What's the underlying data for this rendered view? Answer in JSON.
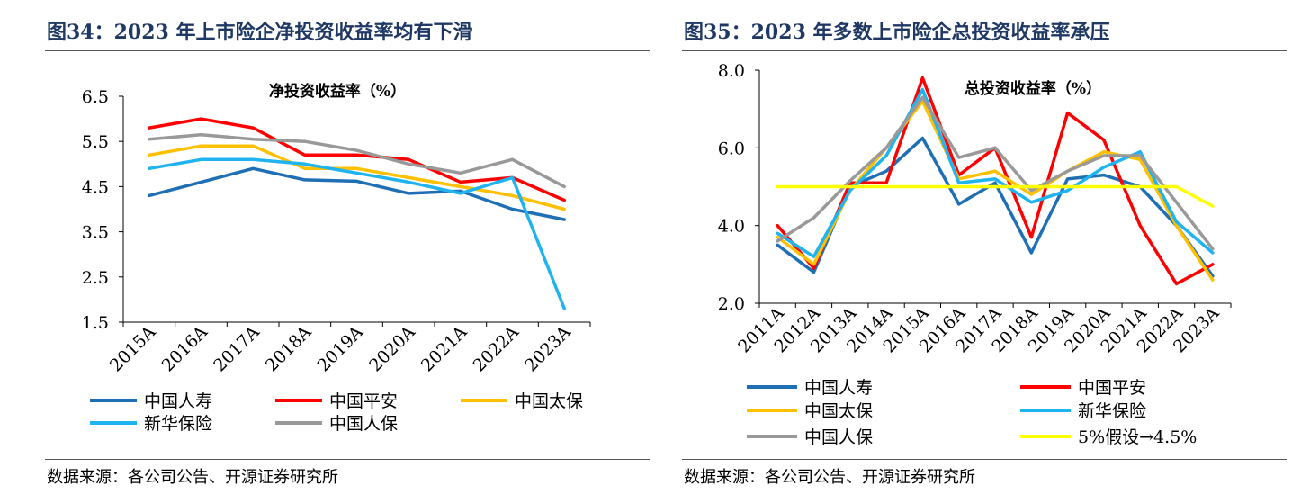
{
  "left": {
    "figure_title": "图34：2023 年上市险企净投资收益率均有下滑",
    "source": "数据来源：各公司公告、开源证券研究所"
  },
  "right": {
    "figure_title": "图35：2023 年多数上市险企总投资收益率承压",
    "source": "数据来源：各公司公告、开源证券研究所"
  },
  "chart_data": [
    {
      "type": "line",
      "title": "净投资收益率（%）",
      "xlabel": "",
      "ylabel": "",
      "categories": [
        "2015A",
        "2016A",
        "2017A",
        "2018A",
        "2019A",
        "2020A",
        "2021A",
        "2022A",
        "2023A"
      ],
      "ylim": [
        1.5,
        6.5
      ],
      "yticks": [
        "1.5",
        "2.5",
        "3.5",
        "4.5",
        "5.5",
        "6.5"
      ],
      "grid": false,
      "legend_position": "bottom",
      "series": [
        {
          "name": "中国人寿",
          "color": "#1f6fb5",
          "values": [
            4.3,
            4.6,
            4.9,
            4.65,
            4.62,
            4.35,
            4.4,
            4.0,
            3.77
          ]
        },
        {
          "name": "中国平安",
          "color": "#ff0000",
          "values": [
            5.8,
            6.0,
            5.8,
            5.2,
            5.2,
            5.1,
            4.6,
            4.7,
            4.2
          ]
        },
        {
          "name": "中国太保",
          "color": "#ffc000",
          "values": [
            5.2,
            5.4,
            5.4,
            4.9,
            4.9,
            4.7,
            4.5,
            4.3,
            4.0
          ]
        },
        {
          "name": "新华保险",
          "color": "#1fb4f0",
          "values": [
            4.9,
            5.1,
            5.1,
            5.0,
            4.8,
            4.6,
            4.35,
            4.7,
            1.8
          ]
        },
        {
          "name": "中国人保",
          "color": "#999999",
          "values": [
            5.55,
            5.65,
            5.55,
            5.5,
            5.3,
            5.0,
            4.8,
            5.1,
            4.5
          ]
        }
      ]
    },
    {
      "type": "line",
      "title": "总投资收益率（%）",
      "xlabel": "",
      "ylabel": "",
      "categories": [
        "2011A",
        "2012A",
        "2013A",
        "2014A",
        "2015A",
        "2016A",
        "2017A",
        "2018A",
        "2019A",
        "2020A",
        "2021A",
        "2022A",
        "2023A"
      ],
      "ylim": [
        2.0,
        8.0
      ],
      "yticks": [
        "2.0",
        "4.0",
        "6.0",
        "8.0"
      ],
      "grid": false,
      "legend_position": "bottom",
      "series": [
        {
          "name": "中国人寿",
          "color": "#1f6fb5",
          "values": [
            3.5,
            2.8,
            5.0,
            5.4,
            6.25,
            4.55,
            5.1,
            3.3,
            5.2,
            5.3,
            5.0,
            4.0,
            2.7
          ]
        },
        {
          "name": "中国平安",
          "color": "#ff0000",
          "values": [
            4.0,
            2.9,
            5.1,
            5.1,
            7.8,
            5.3,
            6.0,
            3.7,
            6.9,
            6.2,
            4.0,
            2.5,
            3.0
          ]
        },
        {
          "name": "中国太保",
          "color": "#ffc000",
          "values": [
            3.7,
            3.0,
            4.9,
            6.0,
            7.2,
            5.2,
            5.4,
            4.8,
            5.4,
            5.9,
            5.7,
            4.0,
            2.6
          ]
        },
        {
          "name": "新华保险",
          "color": "#1fb4f0",
          "values": [
            3.8,
            3.2,
            4.9,
            5.8,
            7.5,
            5.1,
            5.2,
            4.6,
            4.9,
            5.5,
            5.9,
            4.1,
            3.3
          ]
        },
        {
          "name": "中国人保",
          "color": "#999999",
          "values": [
            3.6,
            4.2,
            5.15,
            6.0,
            7.3,
            5.75,
            6.0,
            4.9,
            5.4,
            5.8,
            5.8,
            4.6,
            3.4
          ]
        },
        {
          "name": "5%假设→4.5%",
          "color": "#ffff00",
          "values": [
            5.0,
            5.0,
            5.0,
            5.0,
            5.0,
            5.0,
            5.0,
            5.0,
            5.0,
            5.0,
            5.0,
            5.0,
            4.5
          ]
        }
      ]
    }
  ]
}
